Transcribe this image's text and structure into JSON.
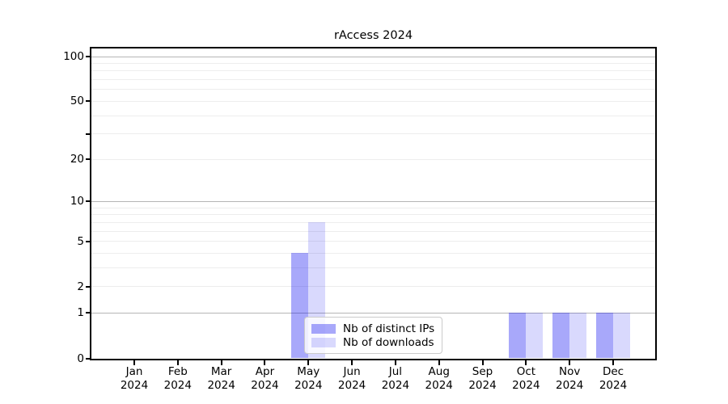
{
  "chart_data": {
    "type": "bar",
    "title": "rAccess 2024",
    "x_year": "2024",
    "categories": [
      "Jan",
      "Feb",
      "Mar",
      "Apr",
      "May",
      "Jun",
      "Jul",
      "Aug",
      "Sep",
      "Oct",
      "Nov",
      "Dec"
    ],
    "series": [
      {
        "name": "Nb of distinct IPs",
        "color": "rgba(0,0,240,0.34)",
        "color_solid": "#a9a9ef",
        "values": [
          0,
          0,
          0,
          0,
          4,
          0,
          0,
          0,
          0,
          1,
          1,
          1
        ]
      },
      {
        "name": "Nb of downloads",
        "color": "rgba(0,0,240,0.15)",
        "color_solid": "#d9d9f8",
        "values": [
          0,
          0,
          0,
          0,
          7,
          0,
          0,
          0,
          0,
          1,
          1,
          1
        ]
      }
    ],
    "yscale": "log1p",
    "ylim": [
      0,
      113.4
    ],
    "yticks": {
      "values": [
        0,
        1,
        2,
        5,
        10,
        20,
        30,
        50,
        100
      ],
      "labels": [
        "0",
        "1",
        "2",
        "5",
        "10",
        "20",
        "",
        "50",
        "100"
      ]
    },
    "grid": {
      "orientation": "horizontal",
      "major_values": [
        1,
        10,
        100
      ],
      "minor_values": [
        2,
        3,
        4,
        5,
        6,
        7,
        8,
        9,
        20,
        30,
        40,
        50,
        60,
        70,
        80,
        90
      ],
      "major_color": "#b5b5b5",
      "minor_color": "#ededed"
    },
    "legend": {
      "position": "lower center"
    }
  }
}
